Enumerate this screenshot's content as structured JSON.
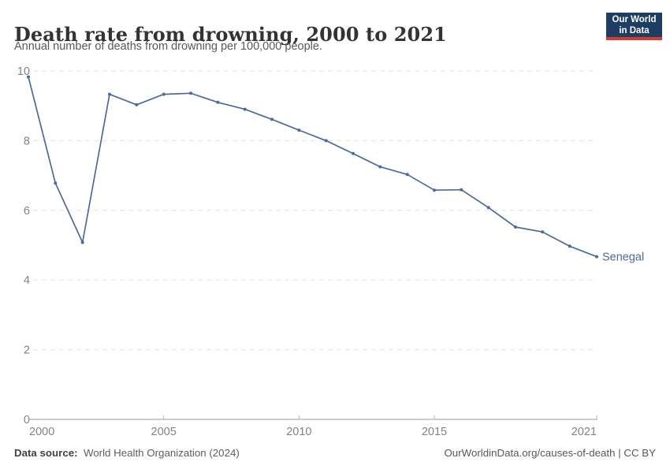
{
  "header": {
    "title": "Death rate from drowning, 2000 to 2021",
    "subtitle": "Annual number of deaths from drowning per 100,000 people."
  },
  "logo": {
    "line1": "Our World",
    "line2": "in Data",
    "bg_color": "#1d3d63",
    "bar_color": "#d63c32"
  },
  "chart_data": {
    "type": "line",
    "title": "Death rate from drowning, 2000 to 2021",
    "ylabel": "Annual deaths from drowning per 100,000 people",
    "xlabel": "",
    "x": [
      2000,
      2001,
      2002,
      2003,
      2004,
      2005,
      2006,
      2007,
      2008,
      2009,
      2010,
      2011,
      2012,
      2013,
      2014,
      2015,
      2016,
      2017,
      2018,
      2019,
      2020,
      2021
    ],
    "series": [
      {
        "name": "Senegal",
        "color": "#4c6a9c",
        "values": [
          9.83,
          6.78,
          5.08,
          9.33,
          9.03,
          9.33,
          9.36,
          9.1,
          8.9,
          8.61,
          8.3,
          8.0,
          7.63,
          7.25,
          7.03,
          6.58,
          6.59,
          6.08,
          5.52,
          5.38,
          4.97,
          4.67
        ]
      }
    ],
    "xlim": [
      2000,
      2021
    ],
    "ylim": [
      0,
      10
    ],
    "x_ticks": [
      2000,
      2005,
      2010,
      2015,
      2021
    ],
    "y_ticks": [
      0,
      2,
      4,
      6,
      8,
      10
    ],
    "grid": "horizontal-dashed",
    "legend_position": "line-end-label",
    "colors": {
      "grid": "#e2e2e2",
      "axis": "#9a9a9a",
      "tick": "#b5b5b5",
      "tick_label": "#828282"
    }
  },
  "footer": {
    "source_label": "Data source:",
    "source_value": "World Health Organization (2024)",
    "credit": "OurWorldinData.org/causes-of-death | CC BY"
  }
}
